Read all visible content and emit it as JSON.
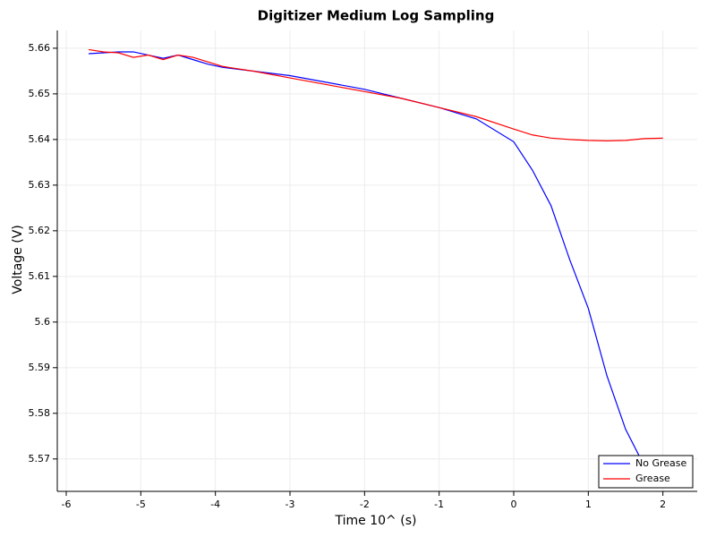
{
  "chart_data": {
    "type": "line",
    "title": "Digitizer Medium Log Sampling",
    "x_label": "Time 10^ (s)",
    "y_label": "Voltage (V)",
    "x": [
      -5.7,
      -5.5,
      -5.3,
      -5.1,
      -4.9,
      -4.7,
      -4.5,
      -4.3,
      -4.1,
      -3.9,
      -3.5,
      -3,
      -2.5,
      -2,
      -1.5,
      -1,
      -0.5,
      0,
      0.25,
      0.5,
      0.75,
      1,
      1.25,
      1.5,
      1.75,
      2
    ],
    "series": [
      {
        "name": "No Grease",
        "color": "#0000ff",
        "values": [
          5.6588,
          5.659,
          5.6592,
          5.6592,
          5.6585,
          5.6578,
          5.6585,
          5.6575,
          5.6565,
          5.6558,
          5.655,
          5.654,
          5.6525,
          5.651,
          5.649,
          5.647,
          5.6445,
          5.6395,
          5.6333,
          5.6255,
          5.6137,
          5.603,
          5.5882,
          5.5765,
          5.5685,
          5.5655
        ]
      },
      {
        "name": "Grease",
        "color": "#ff0000",
        "values": [
          5.6597,
          5.6592,
          5.659,
          5.658,
          5.6585,
          5.6575,
          5.6585,
          5.658,
          5.657,
          5.656,
          5.655,
          5.6535,
          5.652,
          5.6505,
          5.649,
          5.647,
          5.645,
          5.6423,
          5.641,
          5.6403,
          5.64,
          5.6398,
          5.6397,
          5.6398,
          5.6402,
          5.6403
        ]
      }
    ],
    "xlim": [
      -6.12,
      2.46
    ],
    "ylim": [
      5.5629,
      5.6639
    ],
    "xticks": [
      -6,
      -5,
      -4,
      -3,
      -2,
      -1,
      0,
      1,
      2
    ],
    "yticks": [
      5.57,
      5.58,
      5.59,
      5.6,
      5.61,
      5.62,
      5.63,
      5.64,
      5.65,
      5.66
    ],
    "grid": true,
    "legend": "lower-right"
  }
}
